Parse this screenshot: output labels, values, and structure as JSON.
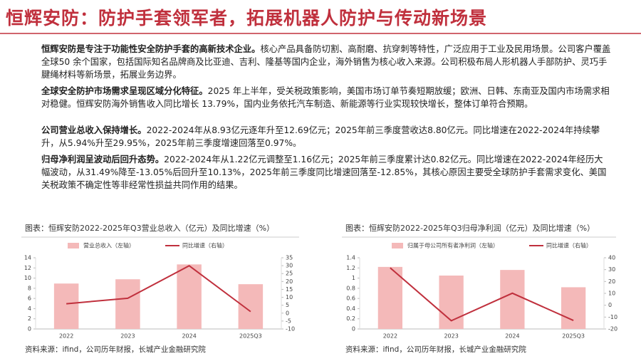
{
  "title": "恒辉安防：防护手套领军者，拓展机器人防护与传动新场景",
  "paragraphs": [
    {
      "lead": "恒辉安防是专注于功能性安全防护手套的高新技术企业。",
      "text": "核心产品具备防切割、高耐磨、抗穿刺等特性，广泛应用于工业及民用场景。公司客户覆盖全球50 余个国家，包括国际知名品牌商及比亚迪、吉利、隆基等国内企业，海外销售为核心收入来源。公司积极布局人形机器人手部防护、灵巧手腱绳材料等新场景，拓展业务边界。"
    },
    {
      "lead": "全球安全防护市场需求呈现区域分化特征。",
      "text": "2025 年上半年，受关税政策影响，美国市场订单节奏短期放缓；欧洲、日韩、东南亚及国内市场需求相对稳健。恒辉安防海外销售收入同比增长 13.79%，国内业务依托汽车制造、新能源等行业实现较快增长，整体订单符合预期。"
    },
    {
      "lead": "公司营业总收入保持增长。",
      "text": "2022-2024年从8.93亿元逐年升至12.69亿元；2025年前三季度营收达8.80亿元。同比增速在2022-2024年持续攀升，从5.94%升至29.95%，2025年前三季度增速回落至0.97%。"
    },
    {
      "lead": "归母净利润呈波动后回升态势。",
      "text": "2022-2024年从1.22亿元调整至1.16亿元；2025年前三季度累计达0.82亿元。同比增速在2022-2024年经历大幅波动，从31.49%降至-13.05%后回升至10.13%，2025年前三季度同比增速回落至-12.85%，其核心原因主要受全球防护手套需求变化、美国关税政策不确定性等非经常性损益共同作用的结果。"
    }
  ],
  "chart_data": [
    {
      "type": "bar_line",
      "title": "图表：恒辉安防2022-2025年Q3营业总收入（亿元）及同比增速（%）",
      "categories": [
        "2022",
        "2023",
        "2024",
        "2025Q3"
      ],
      "series": [
        {
          "name": "营业总收入（左轴）",
          "type": "bar",
          "color": "#f4b9b9",
          "values": [
            8.93,
            9.77,
            12.69,
            8.8
          ]
        },
        {
          "name": "同比增速（右轴）",
          "type": "line",
          "axis": "y2",
          "color": "#c0303d",
          "values": [
            5.94,
            9.4,
            29.95,
            0.97
          ]
        }
      ],
      "ylim": [
        0,
        14
      ],
      "yticks": [
        0,
        2,
        4,
        6,
        8,
        10,
        12,
        14
      ],
      "y2lim": [
        -10,
        35
      ],
      "y2ticks": [
        -10,
        -5,
        0,
        5,
        10,
        15,
        20,
        25,
        30,
        35
      ],
      "grid": false,
      "legend": "top",
      "source": "资料来源：ifind，公司历年财报，长城产业金融研究院"
    },
    {
      "type": "bar_line",
      "title": "图表：恒辉安防2022-2025年Q3归母净利润（亿元）及同比增速（%）",
      "categories": [
        "2022",
        "2023",
        "2024",
        "2025Q3"
      ],
      "series": [
        {
          "name": "归属于母公司所有者净利润（左轴）",
          "type": "bar",
          "color": "#f4b9b9",
          "values": [
            1.22,
            1.05,
            1.16,
            0.82
          ]
        },
        {
          "name": "同比增速（右轴）",
          "type": "line",
          "axis": "y2",
          "color": "#c0303d",
          "values": [
            31.49,
            -13.05,
            10.13,
            -12.85
          ]
        }
      ],
      "ylim": [
        0,
        1.4
      ],
      "yticks": [
        0,
        0.2,
        0.4,
        0.6,
        0.8,
        1,
        1.2,
        1.4
      ],
      "y2lim": [
        -20,
        40
      ],
      "y2ticks": [
        -20,
        -10,
        0,
        10,
        20,
        30,
        40
      ],
      "grid": false,
      "legend": "top",
      "source": "资料来源：ifind，公司历年财报，长城产业金融研究院"
    }
  ]
}
